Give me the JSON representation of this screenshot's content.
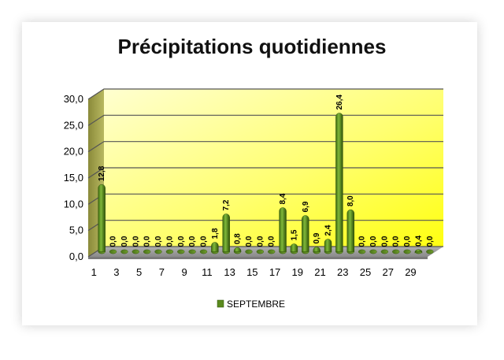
{
  "chart_data": {
    "type": "bar",
    "title": "Précipitations quotidiennes",
    "xlabel": "",
    "ylabel": "",
    "ylim": [
      0,
      30
    ],
    "y_ticks": [
      "0,0",
      "5,0",
      "10,0",
      "15,0",
      "20,0",
      "25,0",
      "30,0"
    ],
    "categories": [
      "1",
      "2",
      "3",
      "4",
      "5",
      "6",
      "7",
      "8",
      "9",
      "10",
      "11",
      "12",
      "13",
      "14",
      "15",
      "16",
      "17",
      "18",
      "19",
      "20",
      "21",
      "22",
      "23",
      "24",
      "25",
      "26",
      "27",
      "28",
      "29",
      "30"
    ],
    "x_tick_labels": [
      "1",
      "3",
      "5",
      "7",
      "9",
      "11",
      "13",
      "15",
      "17",
      "19",
      "21",
      "23",
      "25",
      "27",
      "29"
    ],
    "series": [
      {
        "name": "SEPTEMBRE",
        "values": [
          12.8,
          0,
          0,
          0,
          0,
          0,
          0,
          0,
          0,
          0,
          1.8,
          7.2,
          0.8,
          0,
          0,
          0,
          8.4,
          1.5,
          6.9,
          0.9,
          2.4,
          26.4,
          8.0,
          0,
          0,
          0,
          0,
          0,
          0.4,
          0
        ],
        "labels": [
          "12,8",
          "0,0",
          "0,0",
          "0,0",
          "0,0",
          "0,0",
          "0,0",
          "0,0",
          "0,0",
          "0,0",
          "1,8",
          "7,2",
          "0,8",
          "0,0",
          "0,0",
          "0,0",
          "8,4",
          "1,5",
          "6,9",
          "0,9",
          "2,4",
          "26,4",
          "8,0",
          "0,0",
          "0,0",
          "0,0",
          "0,0",
          "0,0",
          "0,4",
          "0,0"
        ],
        "color": "#5a8a1e"
      }
    ],
    "legend": {
      "position": "bottom",
      "label": "SEPTEMBRE"
    },
    "grid": true,
    "background_colors": [
      "#ffffcc",
      "#ffff33"
    ]
  }
}
